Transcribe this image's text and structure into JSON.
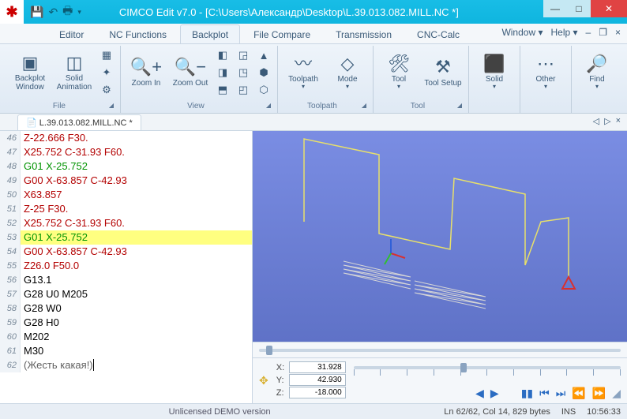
{
  "titlebar": {
    "app_title": "CIMCO Edit v7.0 - [C:\\Users\\Александр\\Desktop\\L.39.013.082.MILL.NC *]"
  },
  "menutabs": {
    "items": [
      "Editor",
      "NC Functions",
      "Backplot",
      "File Compare",
      "Transmission",
      "CNC-Calc"
    ],
    "active_index": 2,
    "window_label": "Window",
    "help_label": "Help"
  },
  "ribbon": {
    "groups": {
      "file": {
        "label": "File",
        "backplot": "Backplot\nWindow",
        "solid": "Solid\nAnimation"
      },
      "view": {
        "label": "View",
        "zoomin": "Zoom\nIn",
        "zoomout": "Zoom\nOut"
      },
      "toolpath": {
        "label": "Toolpath",
        "toolpath": "Toolpath",
        "mode": "Mode"
      },
      "tool": {
        "label": "Tool",
        "tool": "Tool",
        "setup": "Tool\nSetup"
      },
      "solid": {
        "label": "",
        "solid": "Solid"
      },
      "other": {
        "label": "",
        "other": "Other"
      },
      "find": {
        "label": "",
        "find": "Find"
      }
    }
  },
  "doctab": {
    "label": "L.39.013.082.MILL.NC *"
  },
  "code": {
    "lines": [
      {
        "n": 46,
        "cls": "c-red",
        "t": "Z-22.666 F30."
      },
      {
        "n": 47,
        "cls": "c-red",
        "t": "X25.752 C-31.93 F60."
      },
      {
        "n": 48,
        "cls": "c-green",
        "t": "G01 X-25.752"
      },
      {
        "n": 49,
        "cls": "c-red",
        "t": "G00 X-63.857 C-42.93"
      },
      {
        "n": 50,
        "cls": "c-red",
        "t": "X63.857"
      },
      {
        "n": 51,
        "cls": "c-red",
        "t": "Z-25 F30."
      },
      {
        "n": 52,
        "cls": "c-red",
        "t": "X25.752 C-31.93 F60."
      },
      {
        "n": 53,
        "cls": "c-green",
        "t": "G01 X-25.752",
        "hl": true
      },
      {
        "n": 54,
        "cls": "c-red",
        "t": "G00 X-63.857 C-42.93"
      },
      {
        "n": 55,
        "cls": "c-red",
        "t": "Z26.0 F50.0"
      },
      {
        "n": 56,
        "cls": "c-black",
        "t": "G13.1"
      },
      {
        "n": 57,
        "cls": "c-black",
        "t": "G28 U0 M205"
      },
      {
        "n": 58,
        "cls": "c-black",
        "t": "G28 W0"
      },
      {
        "n": 59,
        "cls": "c-black",
        "t": "G28 H0"
      },
      {
        "n": 60,
        "cls": "c-black",
        "t": "M202"
      },
      {
        "n": 61,
        "cls": "c-black",
        "t": "M30"
      },
      {
        "n": 62,
        "cls": "c-comment",
        "t": "(Жесть какая!)",
        "caret": true
      }
    ]
  },
  "coords": {
    "x": "31.928",
    "y": "42.930",
    "z": "-18.000",
    "xlabel": "X:",
    "ylabel": "Y:",
    "zlabel": "Z:"
  },
  "view3d": {
    "bg_top": "#7a8de3",
    "bg_bot": "#5f72c7",
    "path_color": "#e8e06a",
    "feed_color": "#d6d6d6",
    "marker_color": "#d83030",
    "axis_colors": {
      "x": "#d83030",
      "y": "#30c030",
      "z": "#3060d8"
    }
  },
  "status": {
    "demo": "Unlicensed DEMO version",
    "pos": "Ln 62/62, Col 14, 829 bytes",
    "ins": "INS",
    "time": "10:56:33"
  }
}
